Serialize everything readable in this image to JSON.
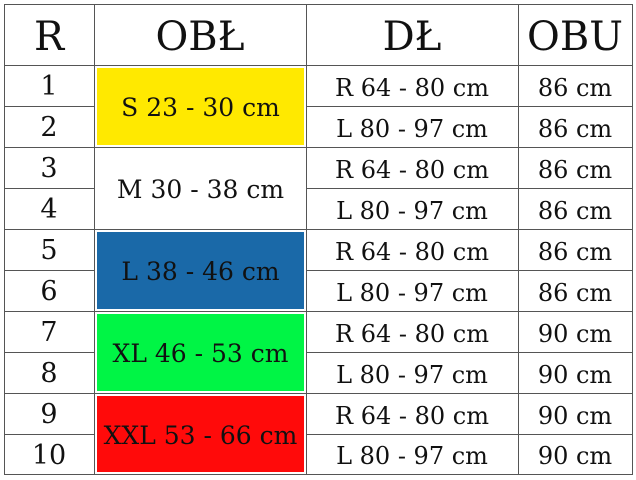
{
  "headers": [
    "R",
    "OBŁ",
    "DŁ",
    "OBU"
  ],
  "rows": [
    {
      "r": "1",
      "dl": "R 64 - 80 cm",
      "obu": "86 cm"
    },
    {
      "r": "2",
      "dl": "L 80 - 97 cm",
      "obu": "86 cm"
    },
    {
      "r": "3",
      "dl": "R 64 - 80 cm",
      "obu": "86 cm"
    },
    {
      "r": "4",
      "dl": "L 80 - 97 cm",
      "obu": "86 cm"
    },
    {
      "r": "5",
      "dl": "R 64 - 80 cm",
      "obu": "86 cm"
    },
    {
      "r": "6",
      "dl": "L 80 - 97 cm",
      "obu": "86 cm"
    },
    {
      "r": "7",
      "dl": "R 64 - 80 cm",
      "obu": "90 cm"
    },
    {
      "r": "8",
      "dl": "L 80 - 97 cm",
      "obu": "90 cm"
    },
    {
      "r": "9",
      "dl": "R 64 - 80 cm",
      "obu": "90 cm"
    },
    {
      "r": "10",
      "dl": "L 80 - 97 cm",
      "obu": "90 cm"
    }
  ],
  "sizes": [
    {
      "label": "S 23 - 30 cm",
      "color": "#ffe900"
    },
    {
      "label": "M 30 - 38 cm",
      "color": "#ffffff"
    },
    {
      "label": "L 38 - 46 cm",
      "color": "#1a69a8"
    },
    {
      "label": "XL 46 - 53 cm",
      "color": "#00f545"
    },
    {
      "label": "XXL 53 - 66 cm",
      "color": "#ff0a0a"
    }
  ]
}
